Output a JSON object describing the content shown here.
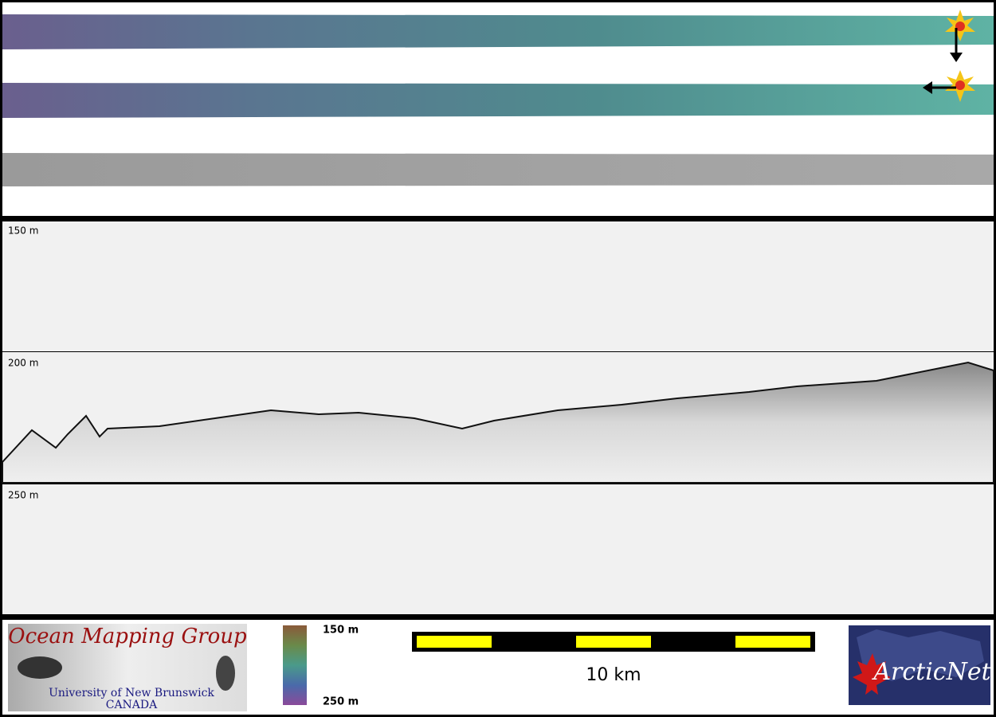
{
  "depth_labels": [
    "150 m",
    "200 m",
    "250 m"
  ],
  "legend": {
    "top": "150 m",
    "bottom": "250 m"
  },
  "scale_bar": {
    "label": "10 km"
  },
  "logo_left": {
    "title": "Ocean Mapping Group",
    "line1": "University of New Brunswick",
    "line2": "CANADA"
  },
  "logo_right": {
    "title": "ArcticNet"
  }
}
